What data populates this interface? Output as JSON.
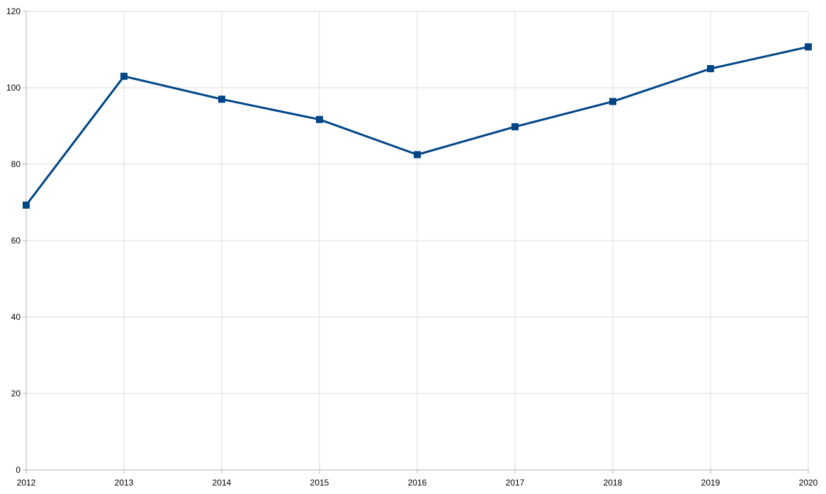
{
  "chart_data": {
    "type": "line",
    "title": "",
    "xlabel": "",
    "ylabel": "",
    "categories": [
      "2012",
      "2013",
      "2014",
      "2015",
      "2016",
      "2017",
      "2018",
      "2019",
      "2020"
    ],
    "series": [
      {
        "values": [
          69.3,
          103.0,
          97.0,
          91.7,
          82.5,
          89.8,
          96.4,
          105.0,
          110.7
        ],
        "color": "#004586",
        "marker": "square"
      }
    ],
    "ylim": [
      0,
      120
    ],
    "yticks": [
      0,
      20,
      40,
      60,
      80,
      100,
      120
    ],
    "grid": true,
    "legend": "none"
  }
}
